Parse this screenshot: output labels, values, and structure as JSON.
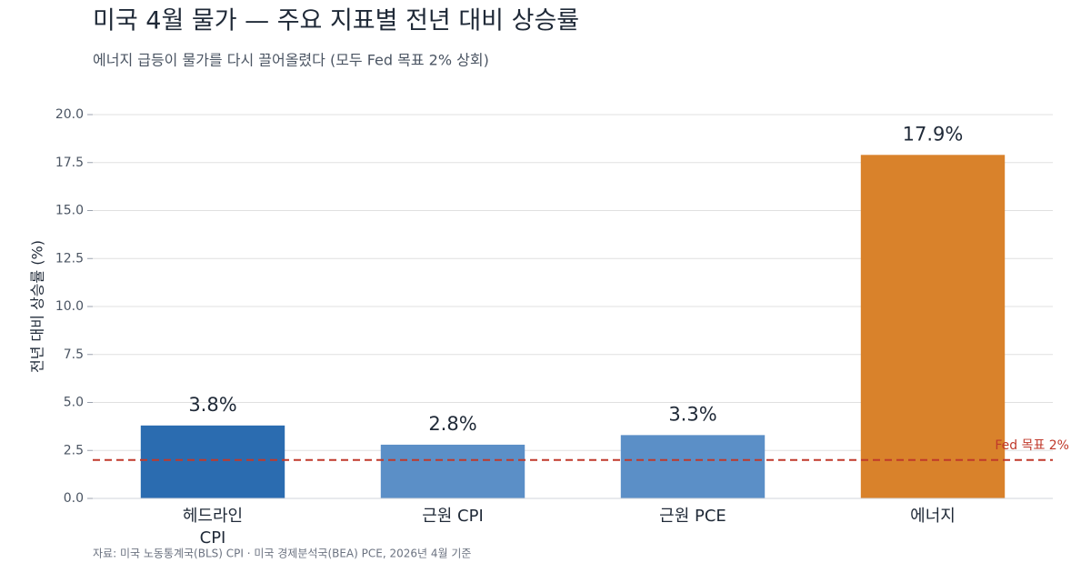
{
  "chart_data": {
    "type": "bar",
    "title": "미국 4월 물가 — 주요 지표별 전년 대비 상승률",
    "subtitle": "에너지 급등이 물가를 다시 끌어올렸다 (모두 Fed 목표 2% 상회)",
    "y_label": "전년 대비 상승률 (%)",
    "source": "자료: 미국 노동통계국(BLS) CPI · 미국 경제분석국(BEA) PCE, 2026년 4월 기준",
    "categories": [
      "헤드라인\nCPI",
      "근원 CPI",
      "근원 PCE",
      "에너지"
    ],
    "values": [
      3.8,
      2.8,
      3.3,
      17.9
    ],
    "value_labels": [
      "3.8%",
      "2.8%",
      "3.3%",
      "17.9%"
    ],
    "colors": [
      "#2b6cb0",
      "#5b8fc7",
      "#5b8fc7",
      "#d9822b"
    ],
    "ylim": [
      0,
      20
    ],
    "yticks": [
      {
        "value": 0,
        "label": "0.0"
      },
      2.5,
      {
        "value": 5,
        "label": "5.0"
      },
      7.5,
      {
        "value": 10,
        "label": "10.0"
      },
      12.5,
      {
        "value": 15,
        "label": "15.0"
      },
      17.5,
      {
        "value": 20,
        "label": "20.0"
      }
    ],
    "grid": true,
    "reference_line": {
      "value": 2,
      "label": "Fed 목표 2%",
      "color": "#c0392b"
    }
  }
}
